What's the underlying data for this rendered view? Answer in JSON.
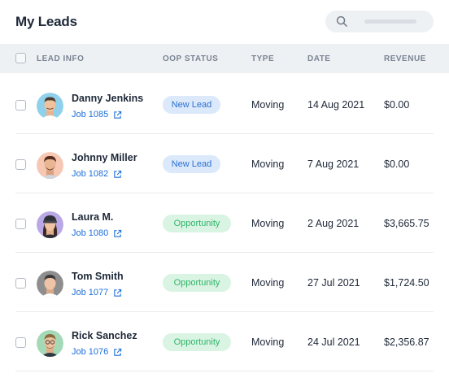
{
  "header": {
    "title": "My Leads"
  },
  "columns": [
    "LEAD INFO",
    "OOP STATUS",
    "TYPE",
    "DATE",
    "REVENUE"
  ],
  "colors": {
    "link": "#1e6fd9",
    "new_lead_bg": "#dbe9fb",
    "opportunity_bg": "#d9f4e3"
  },
  "rows": [
    {
      "name": "Danny Jenkins",
      "job": "Job 1085",
      "status": "New Lead",
      "type": "Moving",
      "date": "14 Aug 2021",
      "revenue": "$0.00"
    },
    {
      "name": "Johnny Miller",
      "job": "Job 1082",
      "status": "New Lead",
      "type": "Moving",
      "date": "7 Aug 2021",
      "revenue": "$0.00"
    },
    {
      "name": "Laura M.",
      "job": "Job 1080",
      "status": "Opportunity",
      "type": "Moving",
      "date": "2 Aug 2021",
      "revenue": "$3,665.75"
    },
    {
      "name": "Tom Smith",
      "job": "Job 1077",
      "status": "Opportunity",
      "type": "Moving",
      "date": "27 Jul 2021",
      "revenue": "$1,724.50"
    },
    {
      "name": "Rick Sanchez",
      "job": "Job 1076",
      "status": "Opportunity",
      "type": "Moving",
      "date": "24 Jul 2021",
      "revenue": "$2,356.87"
    }
  ]
}
